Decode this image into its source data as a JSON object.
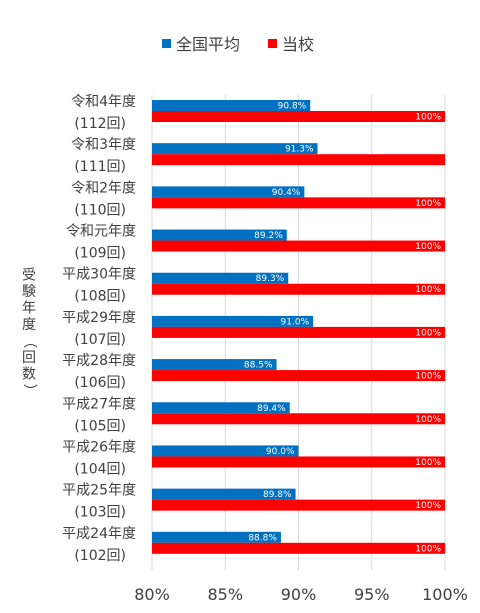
{
  "chart_data": {
    "type": "bar",
    "orientation": "horizontal",
    "ylabel": "受験年度（回数）",
    "legend": {
      "placement": "top"
    },
    "grid": true,
    "xlim": [
      80,
      100
    ],
    "xticks": [
      "80%",
      "85%",
      "90%",
      "95%",
      "100%"
    ],
    "tick_values": [
      80,
      85,
      90,
      95,
      100
    ],
    "categories": [
      [
        "令和4年度",
        "(112回)"
      ],
      [
        "令和3年度",
        "(111回)"
      ],
      [
        "令和2年度",
        "(110回)"
      ],
      [
        "令和元年度",
        "(109回)"
      ],
      [
        "平成30年度",
        "(108回)"
      ],
      [
        "平成29年度",
        "(107回)"
      ],
      [
        "平成28年度",
        "(106回)"
      ],
      [
        "平成27年度",
        "(105回)"
      ],
      [
        "平成26年度",
        "(104回)"
      ],
      [
        "平成25年度",
        "(103回)"
      ],
      [
        "平成24年度",
        "(102回)"
      ]
    ],
    "series": [
      {
        "name": "全国平均",
        "color": "#0070C0",
        "values": [
          90.8,
          91.3,
          90.4,
          89.2,
          89.3,
          91.0,
          88.5,
          89.4,
          90.0,
          89.8,
          88.8
        ],
        "labels": [
          "90.8%",
          "91.3%",
          "90.4%",
          "89.2%",
          "89.3%",
          "91.0%",
          "88.5%",
          "89.4%",
          "90.0%",
          "89.8%",
          "88.8%"
        ]
      },
      {
        "name": "当校",
        "color": "#FF0000",
        "values": [
          100,
          100,
          100,
          100,
          100,
          100,
          100,
          100,
          100,
          100,
          100
        ],
        "labels": [
          "100%",
          "",
          "100%",
          "100%",
          "100%",
          "100%",
          "100%",
          "100%",
          "100%",
          "100%",
          "100%"
        ]
      }
    ]
  }
}
